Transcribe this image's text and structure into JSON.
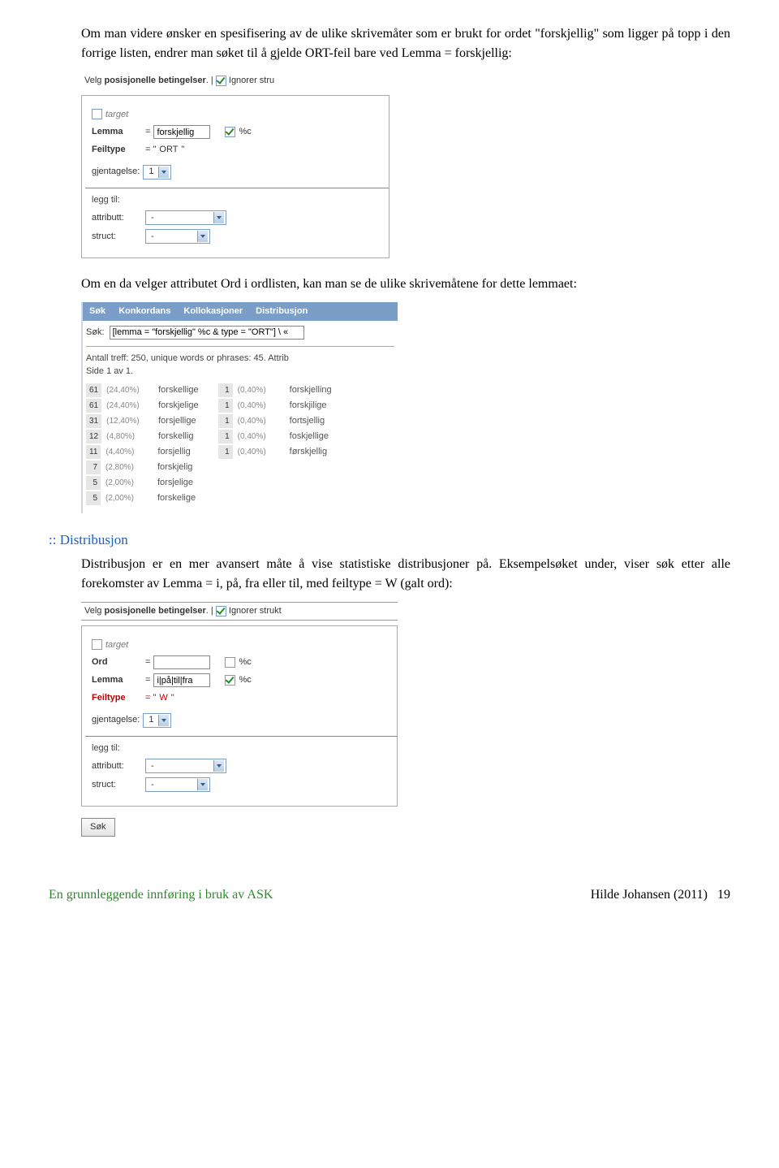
{
  "para1": "Om man videre ønsker en spesifisering av de ulike skrivemåter som er brukt for ordet \"forskjellig\" som ligger på topp i den forrige listen, endrer man søket til å gjelde ORT-feil bare ved Lemma = forskjellig:",
  "panel1": {
    "header_pre": "Velg ",
    "header_bold": "posisjonelle betingelser",
    "header_post": ". | ",
    "header_tail": " Ignorer stru",
    "target": "target",
    "lemma_label": "Lemma",
    "lemma_value": "forskjellig",
    "pc": "%c",
    "feiltype_label": "Feiltype",
    "feiltype_value": "ORT",
    "gjentagelse_label": "gjentagelse:",
    "gjentagelse_value": "1",
    "legend": "legg til:",
    "attributt_label": "attributt:",
    "attributt_value": "-",
    "struct_label": "struct:",
    "struct_value": "-"
  },
  "para2": "Om en da velger attributet Ord i ordlisten, kan man se de ulike skrivemåtene for dette lemmaet:",
  "panel2": {
    "tabs": [
      "Søk",
      "Konkordans",
      "Kollokasjoner",
      "Distribusjon"
    ],
    "sok_label": "Søk:",
    "sok_value": "[lemma = \"forskjellig\" %c & type = \"ORT\"] \\ «",
    "stats_line1": "Antall treff: 250, unique words or phrases: 45. Attrib",
    "stats_line2": "Side 1 av 1.",
    "col_left": [
      {
        "c": "61",
        "p": "(24,40%)",
        "w": "forskellige"
      },
      {
        "c": "61",
        "p": "(24,40%)",
        "w": "forskjelige"
      },
      {
        "c": "31",
        "p": "(12,40%)",
        "w": "forsjellige"
      },
      {
        "c": "12",
        "p": "(4,80%)",
        "w": "forskellig"
      },
      {
        "c": "11",
        "p": "(4,40%)",
        "w": "forsjellig"
      },
      {
        "c": "7",
        "p": "(2,80%)",
        "w": "forskjelig"
      },
      {
        "c": "5",
        "p": "(2,00%)",
        "w": "forsjelige"
      },
      {
        "c": "5",
        "p": "(2,00%)",
        "w": "forskelige"
      }
    ],
    "col_right": [
      {
        "c": "1",
        "p": "(0,40%)",
        "w": "forskjelling"
      },
      {
        "c": "1",
        "p": "(0,40%)",
        "w": "forskjilige"
      },
      {
        "c": "1",
        "p": "(0,40%)",
        "w": "fortsjellig"
      },
      {
        "c": "1",
        "p": "(0,40%)",
        "w": "foskjellige"
      },
      {
        "c": "1",
        "p": "(0,40%)",
        "w": "førskjellig"
      }
    ]
  },
  "section_heading": ":: Distribusjon",
  "para3": "Distribusjon er en mer avansert måte å vise statistiske distribusjoner på. Eksempelsøket under, viser søk etter alle forekomster av Lemma = i, på, fra eller til, med feiltype = W (galt ord):",
  "panel3": {
    "header_pre": "Velg ",
    "header_bold": "posisjonelle betingelser",
    "header_post": ". | ",
    "header_tail": " Ignorer strukt",
    "target": "target",
    "ord_label": "Ord",
    "ord_value": "",
    "lemma_label": "Lemma",
    "lemma_value": "i|på|til|fra",
    "pc": "%c",
    "feiltype_label": "Feiltype",
    "feiltype_value": "W",
    "gjentagelse_label": "gjentagelse:",
    "gjentagelse_value": "1",
    "legend": "legg til:",
    "attributt_label": "attributt:",
    "attributt_value": "-",
    "struct_label": "struct:",
    "struct_value": "-",
    "sok_btn": "Søk"
  },
  "footer_left": "En grunnleggende innføring i bruk av ASK",
  "footer_right_text": "Hilde Johansen (2011)",
  "footer_page": "19"
}
